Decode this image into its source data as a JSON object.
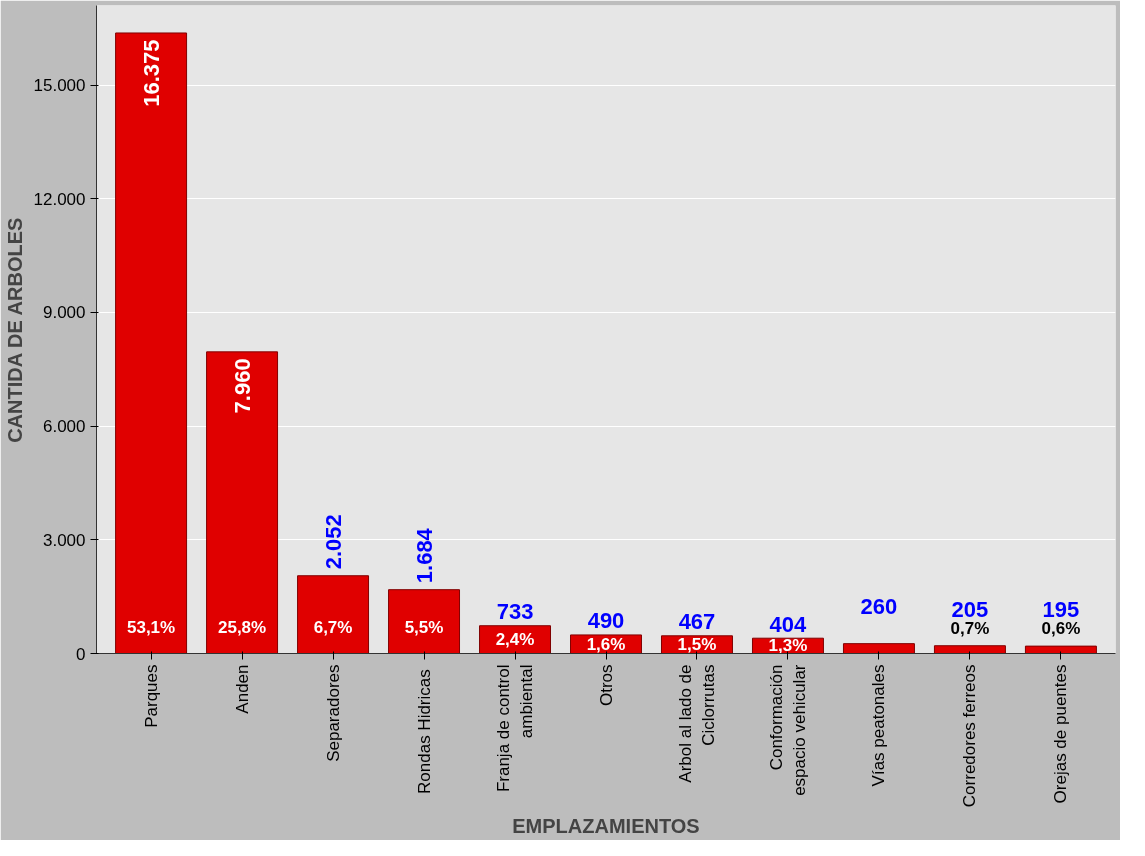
{
  "chart_data": {
    "type": "bar",
    "xlabel": "EMPLAZAMIENTOS",
    "ylabel": "CANTIDA DE ARBOLES",
    "categories": [
      "Parques",
      "Anden",
      "Separadores",
      "Rondas  Hidricas",
      "Franja de control\nambiental",
      "Otros",
      "Arbol al lado de\nCiclorrutas",
      "Conformación\nespacio vehicular",
      "Vías peatonales",
      "Corredores ferreos",
      "Orejas de puentes"
    ],
    "values": [
      16375,
      7960,
      2052,
      1684,
      733,
      490,
      467,
      404,
      260,
      205,
      195
    ],
    "value_labels": [
      "16.375",
      "7.960",
      "2.052",
      "1.684",
      "733",
      "490",
      "467",
      "404",
      "260",
      "205",
      "195"
    ],
    "color": "#e00000",
    "ylim": [
      0,
      17100
    ],
    "yticks": [
      {
        "value": 0,
        "label": "0"
      },
      {
        "value": 3000,
        "label": "3.000"
      },
      {
        "value": 6000,
        "label": "6.000"
      },
      {
        "value": 9000,
        "label": "9.000"
      },
      {
        "value": 12000,
        "label": "12.000"
      },
      {
        "value": 15000,
        "label": "15.000"
      }
    ],
    "grid": "y",
    "annotations": [
      "53,1%",
      "25,8%",
      "6,7%",
      "5,5%",
      "2,4%",
      "1,6%",
      "1,5%",
      "1,3%",
      "0,7%",
      "0,6%"
    ]
  }
}
